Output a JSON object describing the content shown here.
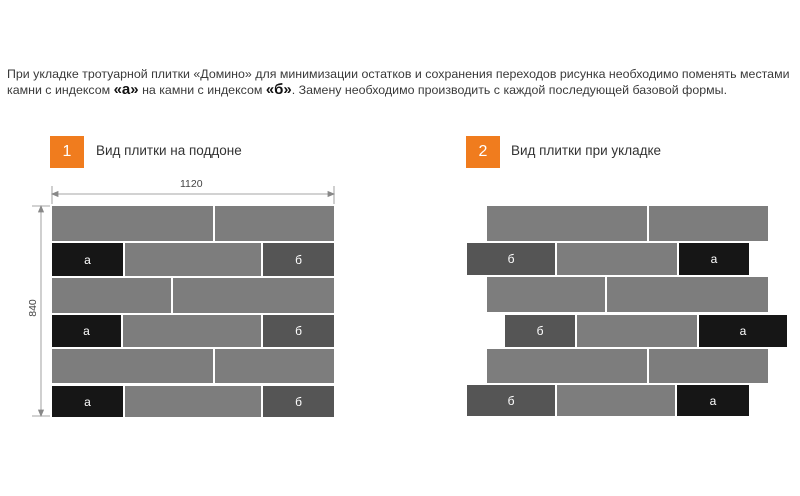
{
  "intro": {
    "part1": "При укладке тротуарной плитки «Домино» для минимизации остатков и сохранения переходов рисунка необходимо поменять местами камни с индексом ",
    "mark_a": "«а»",
    "part2": " на камни с индексом ",
    "mark_b": "«б»",
    "part3": ". Замену необходимо производить с каждой последующей базовой формы."
  },
  "panel1": {
    "number": "1",
    "caption": "Вид плитки на поддоне"
  },
  "panel2": {
    "number": "2",
    "caption": "Вид плитки при укладке"
  },
  "dimensions": {
    "width": "1120",
    "height": "840"
  },
  "labels": {
    "a": "а",
    "b": "б"
  },
  "colors": {
    "accent": "#f07c1e",
    "tile": "#7d7d7d",
    "tile_a": "#161616",
    "tile_b": "#555555"
  }
}
